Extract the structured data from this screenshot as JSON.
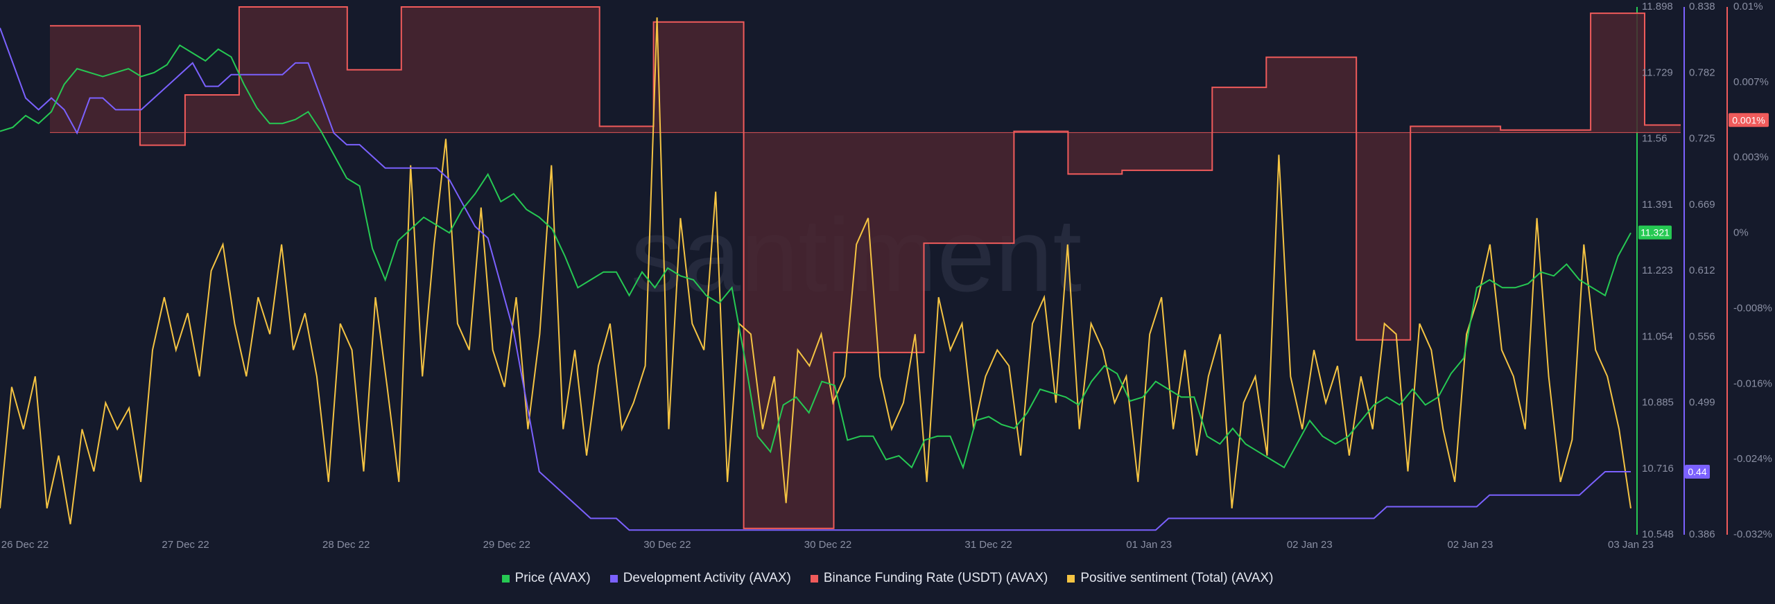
{
  "chart_data": {
    "type": "line",
    "watermark": "santiment",
    "x_ticks": [
      "26 Dec 22",
      "27 Dec 22",
      "28 Dec 22",
      "29 Dec 22",
      "30 Dec 22",
      "30 Dec 22",
      "31 Dec 22",
      "01 Jan 23",
      "02 Jan 23",
      "02 Jan 23",
      "03 Jan 23"
    ],
    "axes": {
      "price": {
        "ticks": [
          "11.898",
          "11.729",
          "11.56",
          "11.391",
          "11.223",
          "11.054",
          "10.885",
          "10.716",
          "10.548"
        ],
        "range": [
          10.548,
          11.898
        ],
        "color": "#26c953"
      },
      "dev_activity": {
        "ticks": [
          "0.838",
          "0.782",
          "0.725",
          "0.669",
          "0.612",
          "0.556",
          "0.499",
          "0.44",
          "0.386"
        ],
        "range": [
          0.386,
          0.838
        ],
        "color": "#7b61ff"
      },
      "funding_rate": {
        "ticks": [
          "0.01%",
          "0.007%",
          "0.003%",
          "0%",
          "-0.008%",
          "-0.016%",
          "-0.024%",
          "-0.032%"
        ],
        "range": [
          -0.032,
          0.01
        ],
        "color": "#f05b5b"
      }
    },
    "current_values": {
      "price": "11.321",
      "dev_activity": "0.44",
      "funding_rate": "0.001%"
    },
    "colors": {
      "background": "#151a2b",
      "price": "#26c953",
      "dev_activity": "#7b61ff",
      "funding": "#f05b5b",
      "sentiment": "#f5c443",
      "funding_fill": "#4a2630"
    },
    "series": [
      {
        "name": "Price (AVAX)",
        "axis": "price",
        "values": [
          11.58,
          11.59,
          11.62,
          11.6,
          11.63,
          11.7,
          11.74,
          11.73,
          11.72,
          11.73,
          11.74,
          11.72,
          11.73,
          11.75,
          11.8,
          11.78,
          11.76,
          11.79,
          11.77,
          11.7,
          11.64,
          11.6,
          11.6,
          11.61,
          11.63,
          11.58,
          11.52,
          11.46,
          11.44,
          11.28,
          11.2,
          11.3,
          11.33,
          11.36,
          11.34,
          11.32,
          11.38,
          11.42,
          11.47,
          11.4,
          11.42,
          11.38,
          11.36,
          11.33,
          11.26,
          11.18,
          11.2,
          11.22,
          11.22,
          11.16,
          11.22,
          11.18,
          11.23,
          11.21,
          11.2,
          11.16,
          11.14,
          11.18,
          11.0,
          10.8,
          10.76,
          10.88,
          10.9,
          10.86,
          10.94,
          10.93,
          10.79,
          10.8,
          10.8,
          10.74,
          10.75,
          10.72,
          10.79,
          10.8,
          10.8,
          10.72,
          10.84,
          10.85,
          10.83,
          10.82,
          10.86,
          10.92,
          10.91,
          10.9,
          10.88,
          10.94,
          10.98,
          10.96,
          10.89,
          10.9,
          10.94,
          10.92,
          10.9,
          10.9,
          10.8,
          10.78,
          10.82,
          10.78,
          10.76,
          10.74,
          10.72,
          10.78,
          10.84,
          10.8,
          10.78,
          10.8,
          10.84,
          10.88,
          10.9,
          10.88,
          10.92,
          10.88,
          10.9,
          10.96,
          11.0,
          11.18,
          11.2,
          11.18,
          11.18,
          11.19,
          11.22,
          11.21,
          11.24,
          11.2,
          11.18,
          11.16,
          11.26,
          11.32
        ]
      },
      {
        "name": "Development Activity (AVAX)",
        "axis": "dev_activity",
        "values": [
          0.82,
          0.79,
          0.76,
          0.75,
          0.76,
          0.75,
          0.73,
          0.76,
          0.76,
          0.75,
          0.75,
          0.75,
          0.76,
          0.77,
          0.78,
          0.79,
          0.77,
          0.77,
          0.78,
          0.78,
          0.78,
          0.78,
          0.78,
          0.79,
          0.79,
          0.76,
          0.73,
          0.72,
          0.72,
          0.71,
          0.7,
          0.7,
          0.7,
          0.7,
          0.7,
          0.69,
          0.67,
          0.65,
          0.64,
          0.6,
          0.56,
          0.5,
          0.44,
          0.43,
          0.42,
          0.41,
          0.4,
          0.4,
          0.4,
          0.39,
          0.39,
          0.39,
          0.39,
          0.39,
          0.39,
          0.39,
          0.39,
          0.39,
          0.39,
          0.39,
          0.39,
          0.39,
          0.39,
          0.39,
          0.39,
          0.39,
          0.39,
          0.39,
          0.39,
          0.39,
          0.39,
          0.39,
          0.39,
          0.39,
          0.39,
          0.39,
          0.39,
          0.39,
          0.39,
          0.39,
          0.39,
          0.39,
          0.39,
          0.39,
          0.39,
          0.39,
          0.39,
          0.39,
          0.39,
          0.39,
          0.39,
          0.4,
          0.4,
          0.4,
          0.4,
          0.4,
          0.4,
          0.4,
          0.4,
          0.4,
          0.4,
          0.4,
          0.4,
          0.4,
          0.4,
          0.4,
          0.4,
          0.4,
          0.41,
          0.41,
          0.41,
          0.41,
          0.41,
          0.41,
          0.41,
          0.41,
          0.42,
          0.42,
          0.42,
          0.42,
          0.42,
          0.42,
          0.42,
          0.42,
          0.43,
          0.44,
          0.44,
          0.44
        ]
      },
      {
        "name": "Binance Funding Rate (USDT) (AVAX)",
        "axis": "funding_rate",
        "values": [
          0.0085,
          0.0085,
          0.0085,
          0.0085,
          0.0085,
          0.0085,
          0.0085,
          0.0085,
          0.0085,
          0.0085,
          -0.001,
          -0.001,
          -0.001,
          -0.001,
          -0.001,
          0.003,
          0.003,
          0.003,
          0.003,
          0.003,
          0.003,
          0.01,
          0.01,
          0.01,
          0.01,
          0.01,
          0.01,
          0.01,
          0.01,
          0.01,
          0.01,
          0.01,
          0.01,
          0.005,
          0.005,
          0.005,
          0.005,
          0.005,
          0.005,
          0.01,
          0.01,
          0.01,
          0.01,
          0.01,
          0.01,
          0.01,
          0.01,
          0.01,
          0.01,
          0.01,
          0.01,
          0.01,
          0.01,
          0.01,
          0.01,
          0.01,
          0.01,
          0.01,
          0.01,
          0.01,
          0.01,
          0.0005,
          0.0005,
          0.0005,
          0.0005,
          0.0005,
          0.0005,
          0.0088,
          0.0088,
          0.0088,
          0.0088,
          0.0088,
          0.0088,
          0.0088,
          0.0088,
          0.0088,
          0.0088,
          -0.0315,
          -0.0315,
          -0.0315,
          -0.0315,
          -0.0315,
          -0.0315,
          -0.0315,
          -0.0315,
          -0.0315,
          -0.0315,
          -0.0175,
          -0.0175,
          -0.0175,
          -0.0175,
          -0.0175,
          -0.0175,
          -0.0175,
          -0.0175,
          -0.0175,
          -0.0175,
          -0.0088,
          -0.0088,
          -0.0088,
          -0.0088,
          -0.0088,
          -0.0088,
          -0.0088,
          -0.0088,
          -0.0088,
          -0.0088,
          0.0001,
          0.0001,
          0.0001,
          0.0001,
          0.0001,
          0.0001,
          -0.0033,
          -0.0033,
          -0.0033,
          -0.0033,
          -0.0033,
          -0.0033,
          -0.003,
          -0.003,
          -0.003,
          -0.003,
          -0.003,
          -0.003,
          -0.003,
          -0.003,
          -0.003,
          -0.003,
          0.0036,
          0.0036,
          0.0036,
          0.0036,
          0.0036,
          0.0036,
          0.006,
          0.006,
          0.006,
          0.006,
          0.006,
          0.006,
          0.006,
          0.006,
          0.006,
          0.006,
          -0.0165,
          -0.0165,
          -0.0165,
          -0.0165,
          -0.0165,
          -0.0165,
          0.0005,
          0.0005,
          0.0005,
          0.0005,
          0.0005,
          0.0005,
          0.0005,
          0.0005,
          0.0005,
          0.0005,
          0.0002,
          0.0002,
          0.0002,
          0.0002,
          0.0002,
          0.0002,
          0.0002,
          0.0002,
          0.0002,
          0.0002,
          0.0095,
          0.0095,
          0.0095,
          0.0095,
          0.0095,
          0.0095,
          0.0006,
          0.0006,
          0.0006,
          0.0006
        ]
      },
      {
        "name": "Positive sentiment (Total) (AVAX)",
        "axis": "sentiment",
        "values": [
          0.05,
          0.28,
          0.2,
          0.3,
          0.05,
          0.15,
          0.02,
          0.2,
          0.12,
          0.25,
          0.2,
          0.24,
          0.1,
          0.35,
          0.45,
          0.35,
          0.42,
          0.3,
          0.5,
          0.55,
          0.4,
          0.3,
          0.45,
          0.38,
          0.55,
          0.35,
          0.42,
          0.3,
          0.1,
          0.4,
          0.35,
          0.12,
          0.45,
          0.28,
          0.1,
          0.7,
          0.3,
          0.55,
          0.75,
          0.4,
          0.35,
          0.62,
          0.35,
          0.28,
          0.45,
          0.2,
          0.38,
          0.7,
          0.2,
          0.35,
          0.15,
          0.32,
          0.4,
          0.2,
          0.25,
          0.32,
          0.98,
          0.2,
          0.6,
          0.4,
          0.35,
          0.65,
          0.1,
          0.4,
          0.38,
          0.2,
          0.3,
          0.06,
          0.35,
          0.32,
          0.38,
          0.25,
          0.3,
          0.55,
          0.6,
          0.3,
          0.2,
          0.25,
          0.38,
          0.1,
          0.45,
          0.35,
          0.4,
          0.2,
          0.3,
          0.35,
          0.32,
          0.15,
          0.4,
          0.45,
          0.25,
          0.55,
          0.2,
          0.4,
          0.35,
          0.25,
          0.3,
          0.1,
          0.38,
          0.45,
          0.2,
          0.35,
          0.15,
          0.3,
          0.38,
          0.05,
          0.25,
          0.3,
          0.15,
          0.72,
          0.3,
          0.2,
          0.35,
          0.25,
          0.32,
          0.15,
          0.3,
          0.2,
          0.4,
          0.38,
          0.12,
          0.4,
          0.35,
          0.2,
          0.1,
          0.38,
          0.45,
          0.55,
          0.35,
          0.3,
          0.2,
          0.6,
          0.3,
          0.1,
          0.18,
          0.55,
          0.35,
          0.3,
          0.2,
          0.05
        ]
      }
    ]
  },
  "legend": [
    {
      "label": "Price (AVAX)",
      "color": "#26c953"
    },
    {
      "label": "Development Activity (AVAX)",
      "color": "#7b61ff"
    },
    {
      "label": "Binance Funding Rate (USDT) (AVAX)",
      "color": "#f05b5b"
    },
    {
      "label": "Positive sentiment (Total) (AVAX)",
      "color": "#f5c443"
    }
  ]
}
